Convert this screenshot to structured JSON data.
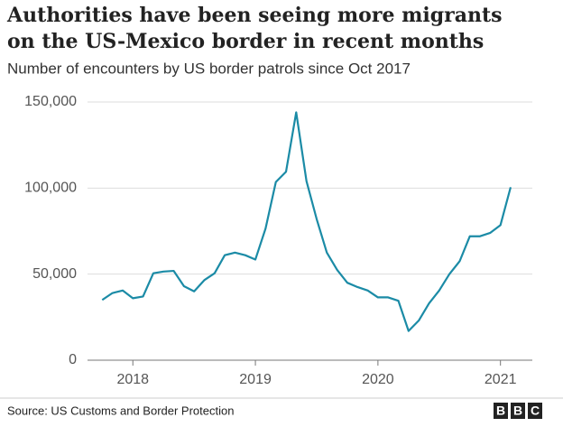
{
  "chart_data": {
    "type": "line",
    "title": [
      "Authorities have been seeing more migrants",
      "on the US-Mexico border in recent months"
    ],
    "subtitle": "Number of encounters by US border patrols since Oct 2017",
    "source": "Source: US Customs and Border Protection",
    "logo": "BBC",
    "x": [
      2017.75,
      2017.833,
      2017.917,
      2018.0,
      2018.083,
      2018.167,
      2018.25,
      2018.333,
      2018.417,
      2018.5,
      2018.583,
      2018.667,
      2018.75,
      2018.833,
      2018.917,
      2019.0,
      2019.083,
      2019.167,
      2019.25,
      2019.333,
      2019.417,
      2019.5,
      2019.583,
      2019.667,
      2019.75,
      2019.833,
      2019.917,
      2020.0,
      2020.083,
      2020.167,
      2020.25,
      2020.333,
      2020.417,
      2020.5,
      2020.583,
      2020.667,
      2020.75,
      2020.833,
      2020.917,
      2021.0,
      2021.083
    ],
    "series": [
      {
        "name": "Encounters",
        "color": "#1b8ba6",
        "values": [
          35000,
          39000,
          40500,
          36000,
          37000,
          50500,
          51500,
          51900,
          43000,
          40000,
          46500,
          50500,
          61000,
          62500,
          61000,
          58500,
          76500,
          103500,
          109500,
          144000,
          104000,
          82000,
          62500,
          52500,
          45000,
          42500,
          40500,
          36500,
          36500,
          34500,
          17000,
          23000,
          33000,
          40500,
          50000,
          57500,
          72000,
          72000,
          74000,
          78500,
          100500
        ]
      }
    ],
    "xlim": [
      2017.63,
      2021.26
    ],
    "xticks": [
      2018,
      2019,
      2020,
      2021
    ],
    "ylim": [
      0,
      150000
    ],
    "yticks": [
      0,
      {
        "value": 50000,
        "label": "50,000"
      },
      {
        "value": 100000,
        "label": "100,000"
      },
      {
        "value": 150000,
        "label": "150,000"
      }
    ],
    "grid": true
  }
}
